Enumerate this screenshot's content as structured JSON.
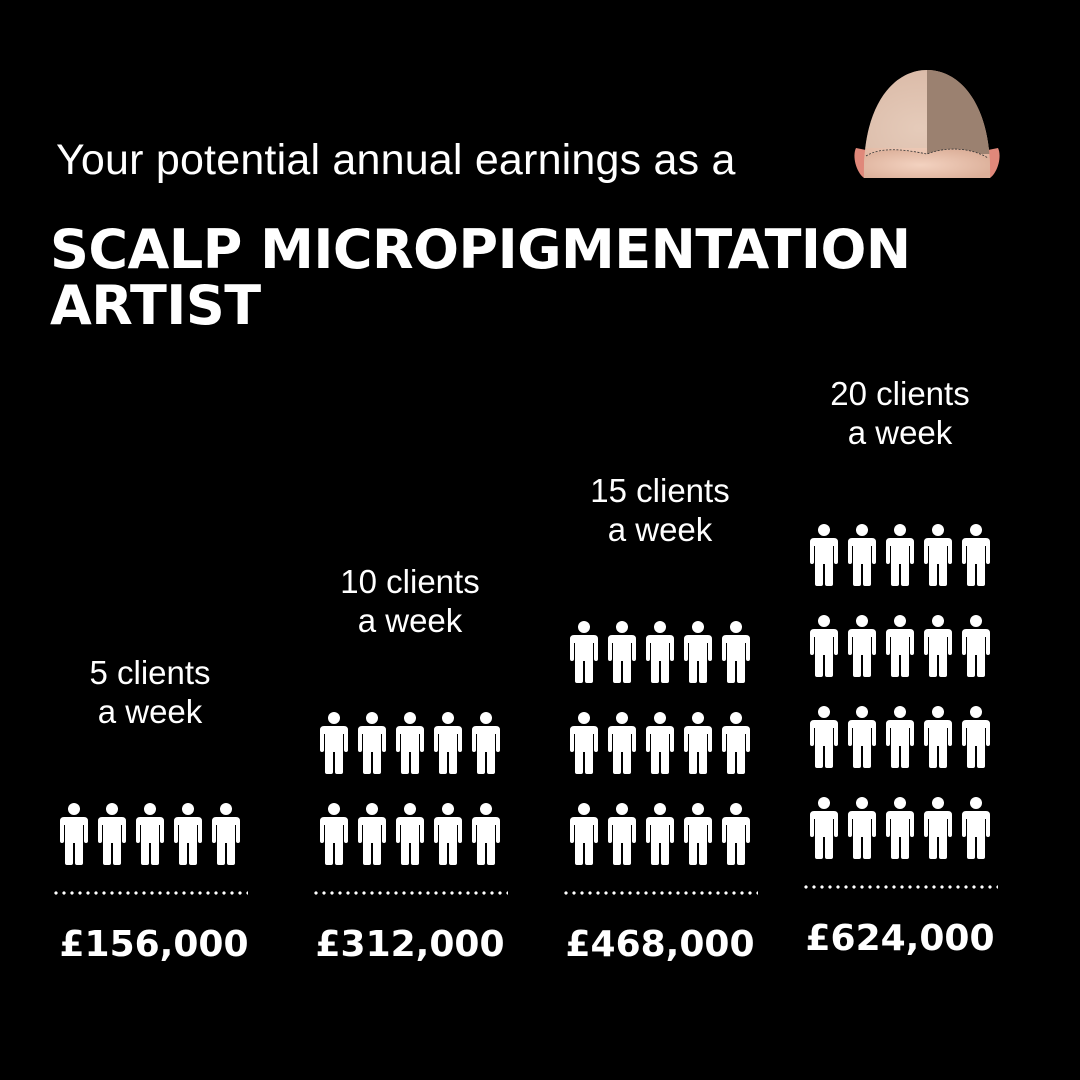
{
  "header": {
    "intro": "Your potential annual earnings as a",
    "title_line1": "SCALP MICROPIGMENTATION",
    "title_line2": "ARTIST",
    "image": "bald-head-scalp-micropigmentation-comparison"
  },
  "chart_data": {
    "type": "pictogram",
    "icon": "person-icon",
    "icons_per_row": 5,
    "categories": [
      "5 clients a week",
      "10 clients a week",
      "15 clients a week",
      "20 clients a week"
    ],
    "label_lines": [
      [
        "5 clients",
        "a week"
      ],
      [
        "10 clients",
        "a week"
      ],
      [
        "15 clients",
        "a week"
      ],
      [
        "20 clients",
        "a week"
      ]
    ],
    "clients_per_week": [
      5,
      10,
      15,
      20
    ],
    "earnings_labels": [
      "£156,000",
      "£312,000",
      "£468,000",
      "£624,000"
    ],
    "earnings": [
      156000,
      312000,
      468000,
      624000
    ],
    "currency": "GBP"
  },
  "colors": {
    "background": "#000000",
    "foreground": "#ffffff"
  }
}
